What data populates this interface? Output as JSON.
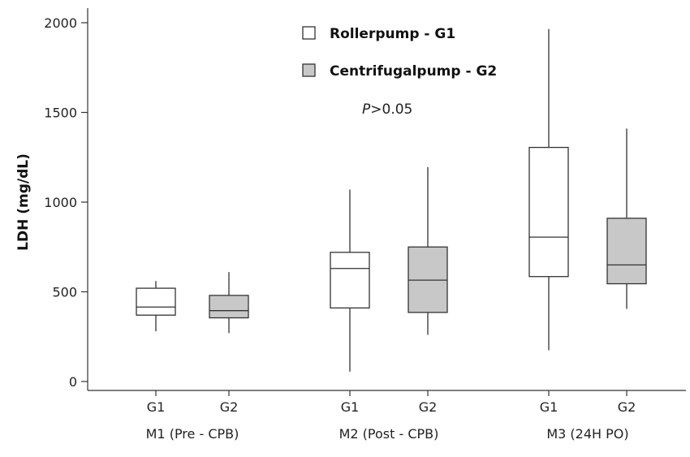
{
  "chart_data": {
    "type": "boxplot",
    "ylabel": "LDH (mg/dL)",
    "ylim": [
      0,
      2000
    ],
    "yticks": [
      0,
      500,
      1000,
      1500,
      2000
    ],
    "grid": false,
    "annotation": {
      "prefix": "P",
      "suffix": ">0.05"
    },
    "legend": {
      "placement": "top-center",
      "entries": [
        {
          "label": "Rollerpump - G1",
          "fill": "#ffffff"
        },
        {
          "label": "Centrifugalpump - G2",
          "fill": "#c8c8c8"
        }
      ]
    },
    "groups": [
      {
        "label": "M1 (Pre - CPB)",
        "boxes": [
          {
            "label": "G1",
            "series": "Rollerpump - G1",
            "min": 280,
            "q1": 370,
            "median": 415,
            "q3": 520,
            "max": 560
          },
          {
            "label": "G2",
            "series": "Centrifugalpump - G2",
            "min": 270,
            "q1": 355,
            "median": 395,
            "q3": 480,
            "max": 610
          }
        ]
      },
      {
        "label": "M2 (Post - CPB)",
        "boxes": [
          {
            "label": "G1",
            "series": "Rollerpump - G1",
            "min": 55,
            "q1": 410,
            "median": 630,
            "q3": 720,
            "max": 1070
          },
          {
            "label": "G2",
            "series": "Centrifugalpump - G2",
            "min": 260,
            "q1": 385,
            "median": 565,
            "q3": 750,
            "max": 1195
          }
        ]
      },
      {
        "label": "M3 (24H PO)",
        "boxes": [
          {
            "label": "G1",
            "series": "Rollerpump - G1",
            "min": 175,
            "q1": 585,
            "median": 805,
            "q3": 1305,
            "max": 1965
          },
          {
            "label": "G2",
            "series": "Centrifugalpump - G2",
            "min": 405,
            "q1": 545,
            "median": 650,
            "q3": 910,
            "max": 1410
          }
        ]
      }
    ]
  }
}
